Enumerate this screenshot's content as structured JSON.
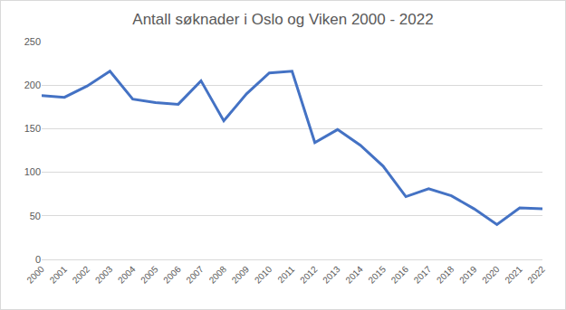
{
  "chart_data": {
    "type": "line",
    "title": "Antall søknader i Oslo og Viken 2000 - 2022",
    "categories": [
      "2000",
      "2001",
      "2002",
      "2003",
      "2004",
      "2005",
      "2006",
      "2007",
      "2008",
      "2009",
      "2010",
      "2011",
      "2012",
      "2013",
      "2014",
      "2015",
      "2016",
      "2017",
      "2018",
      "2019",
      "2020",
      "2021",
      "2022"
    ],
    "values": [
      188,
      186,
      199,
      216,
      184,
      180,
      178,
      205,
      159,
      190,
      214,
      216,
      134,
      149,
      131,
      107,
      72,
      81,
      73,
      58,
      40,
      59,
      58
    ],
    "color": "#4472c4",
    "ylim": [
      0,
      250
    ],
    "yticks": [
      0,
      50,
      100,
      150,
      200,
      250
    ],
    "grid": true
  }
}
